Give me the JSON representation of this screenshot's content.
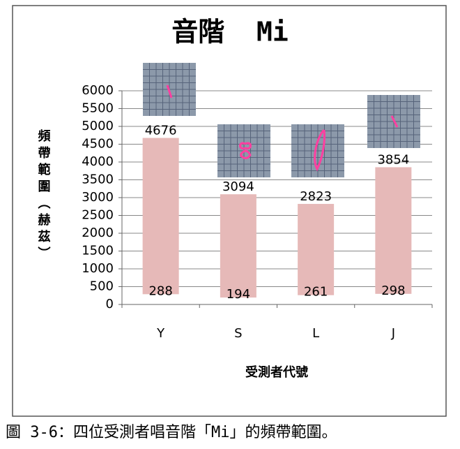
{
  "chart_data": {
    "type": "range-bar",
    "title": "音階  Mi",
    "y_label": "頻帶範圍（赫茲）",
    "x_label": "受測者代號",
    "categories": [
      "Y",
      "S",
      "L",
      "J"
    ],
    "low": [
      288,
      194,
      261,
      298
    ],
    "high": [
      4676,
      3094,
      2823,
      3854
    ],
    "color": "#e6b9b8",
    "ylim": [
      0,
      6000
    ],
    "yticks": [
      0,
      500,
      1000,
      1500,
      2000,
      2500,
      3000,
      3500,
      4000,
      4500,
      5000,
      5500,
      6000
    ],
    "grid": true
  },
  "caption": "圖 3-6：四位受測者唱音階「Mi」的頻帶範圍。"
}
